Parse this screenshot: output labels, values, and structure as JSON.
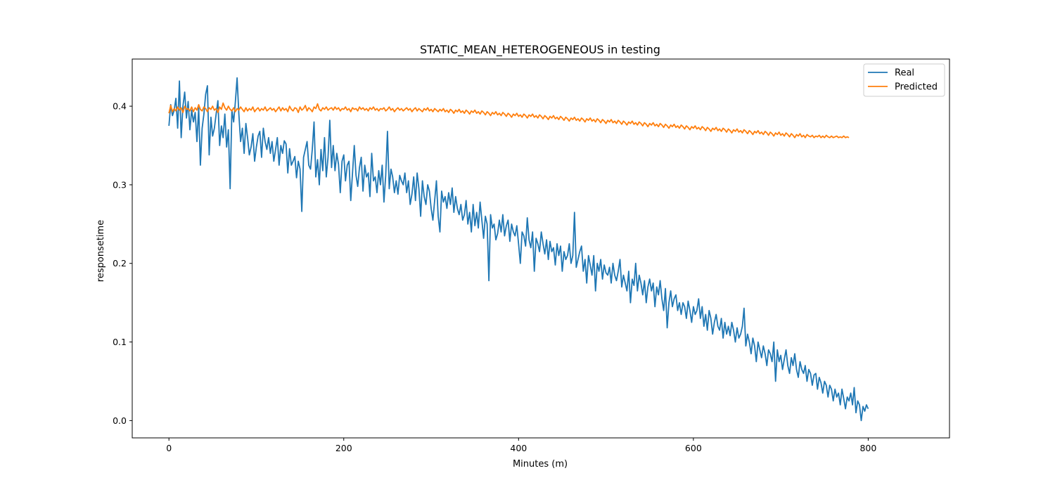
{
  "chart_data": {
    "type": "line",
    "title": "STATIC_MEAN_HETEROGENEOUS in testing",
    "xlabel": "Minutes (m)",
    "ylabel": "responsetime",
    "xlim": [
      -42,
      893
    ],
    "ylim": [
      -0.022,
      0.46
    ],
    "xticks": [
      0,
      200,
      400,
      600,
      800
    ],
    "yticks": [
      0.0,
      0.1,
      0.2,
      0.3,
      0.4
    ],
    "ytick_labels": [
      "0.0",
      "0.1",
      "0.2",
      "0.3",
      "0.4"
    ],
    "grid": false,
    "legend_position": "top-right",
    "series": [
      {
        "name": "Real",
        "color": "#1f77b4",
        "x_start": 0,
        "x_step": 2,
        "values": [
          0.375,
          0.402,
          0.388,
          0.395,
          0.41,
          0.372,
          0.432,
          0.36,
          0.4,
          0.418,
          0.385,
          0.406,
          0.37,
          0.395,
          0.38,
          0.392,
          0.355,
          0.398,
          0.325,
          0.372,
          0.39,
          0.415,
          0.426,
          0.338,
          0.386,
          0.362,
          0.372,
          0.39,
          0.407,
          0.35,
          0.375,
          0.36,
          0.39,
          0.348,
          0.37,
          0.295,
          0.395,
          0.38,
          0.405,
          0.436,
          0.39,
          0.355,
          0.372,
          0.34,
          0.378,
          0.36,
          0.338,
          0.348,
          0.365,
          0.33,
          0.348,
          0.362,
          0.368,
          0.335,
          0.372,
          0.355,
          0.345,
          0.36,
          0.34,
          0.355,
          0.33,
          0.345,
          0.36,
          0.325,
          0.35,
          0.34,
          0.356,
          0.352,
          0.315,
          0.346,
          0.325,
          0.33,
          0.336,
          0.309,
          0.33,
          0.32,
          0.266,
          0.335,
          0.345,
          0.355,
          0.325,
          0.32,
          0.345,
          0.38,
          0.31,
          0.332,
          0.3,
          0.345,
          0.318,
          0.36,
          0.31,
          0.335,
          0.382,
          0.322,
          0.35,
          0.318,
          0.34,
          0.326,
          0.29,
          0.33,
          0.338,
          0.305,
          0.325,
          0.33,
          0.28,
          0.315,
          0.35,
          0.312,
          0.298,
          0.322,
          0.335,
          0.292,
          0.325,
          0.31,
          0.315,
          0.285,
          0.34,
          0.305,
          0.31,
          0.29,
          0.318,
          0.3,
          0.325,
          0.278,
          0.312,
          0.368,
          0.295,
          0.32,
          0.31,
          0.29,
          0.305,
          0.288,
          0.312,
          0.305,
          0.3,
          0.315,
          0.29,
          0.305,
          0.275,
          0.288,
          0.31,
          0.28,
          0.315,
          0.295,
          0.26,
          0.305,
          0.285,
          0.275,
          0.3,
          0.292,
          0.27,
          0.255,
          0.28,
          0.305,
          0.26,
          0.24,
          0.292,
          0.278,
          0.285,
          0.27,
          0.29,
          0.275,
          0.296,
          0.265,
          0.285,
          0.27,
          0.262,
          0.275,
          0.255,
          0.262,
          0.28,
          0.25,
          0.265,
          0.24,
          0.275,
          0.248,
          0.265,
          0.245,
          0.278,
          0.255,
          0.232,
          0.26,
          0.25,
          0.178,
          0.262,
          0.245,
          0.25,
          0.23,
          0.238,
          0.255,
          0.24,
          0.262,
          0.235,
          0.248,
          0.255,
          0.228,
          0.25,
          0.24,
          0.235,
          0.248,
          0.225,
          0.2,
          0.24,
          0.235,
          0.222,
          0.258,
          0.23,
          0.22,
          0.24,
          0.19,
          0.232,
          0.225,
          0.215,
          0.24,
          0.225,
          0.212,
          0.23,
          0.205,
          0.228,
          0.215,
          0.22,
          0.198,
          0.225,
          0.21,
          0.222,
          0.19,
          0.215,
          0.205,
          0.21,
          0.225,
          0.2,
          0.21,
          0.265,
          0.195,
          0.205,
          0.215,
          0.222,
          0.19,
          0.205,
          0.175,
          0.21,
          0.198,
          0.185,
          0.21,
          0.165,
          0.2,
          0.19,
          0.205,
          0.18,
          0.198,
          0.188,
          0.185,
          0.195,
          0.175,
          0.2,
          0.185,
          0.178,
          0.19,
          0.205,
          0.17,
          0.185,
          0.175,
          0.165,
          0.19,
          0.15,
          0.18,
          0.172,
          0.2,
          0.165,
          0.185,
          0.175,
          0.16,
          0.178,
          0.15,
          0.17,
          0.18,
          0.165,
          0.175,
          0.145,
          0.17,
          0.16,
          0.178,
          0.155,
          0.14,
          0.168,
          0.118,
          0.15,
          0.165,
          0.145,
          0.155,
          0.16,
          0.14,
          0.15,
          0.135,
          0.15,
          0.145,
          0.13,
          0.152,
          0.14,
          0.125,
          0.145,
          0.135,
          0.14,
          0.155,
          0.13,
          0.145,
          0.12,
          0.135,
          0.115,
          0.14,
          0.13,
          0.11,
          0.125,
          0.135,
          0.12,
          0.115,
          0.13,
          0.105,
          0.125,
          0.11,
          0.12,
          0.108,
          0.125,
          0.115,
          0.1,
          0.118,
          0.105,
          0.11,
          0.12,
          0.143,
          0.095,
          0.11,
          0.1,
          0.085,
          0.105,
          0.095,
          0.075,
          0.1,
          0.09,
          0.08,
          0.095,
          0.085,
          0.07,
          0.09,
          0.085,
          0.075,
          0.1,
          0.05,
          0.09,
          0.075,
          0.083,
          0.065,
          0.078,
          0.09,
          0.07,
          0.06,
          0.08,
          0.07,
          0.085,
          0.065,
          0.055,
          0.075,
          0.065,
          0.06,
          0.07,
          0.05,
          0.065,
          0.06,
          0.045,
          0.058,
          0.06,
          0.04,
          0.055,
          0.048,
          0.035,
          0.05,
          0.045,
          0.03,
          0.045,
          0.04,
          0.025,
          0.04,
          0.03,
          0.035,
          0.02,
          0.04,
          0.028,
          0.015,
          0.03,
          0.025,
          0.035,
          0.02,
          0.042,
          0.01,
          0.025,
          0.02,
          0.0,
          0.018,
          0.012,
          0.02,
          0.015
        ]
      },
      {
        "name": "Predicted",
        "color": "#ff7f0e",
        "x_start": 0,
        "x_step": 2,
        "values": [
          0.391,
          0.401,
          0.393,
          0.397,
          0.394,
          0.399,
          0.395,
          0.398,
          0.392,
          0.4,
          0.396,
          0.397,
          0.394,
          0.399,
          0.393,
          0.398,
          0.395,
          0.402,
          0.396,
          0.394,
          0.399,
          0.397,
          0.393,
          0.398,
          0.396,
          0.4,
          0.395,
          0.397,
          0.392,
          0.399,
          0.396,
          0.404,
          0.398,
          0.395,
          0.4,
          0.396,
          0.394,
          0.398,
          0.393,
          0.397,
          0.395,
          0.399,
          0.396,
          0.393,
          0.398,
          0.394,
          0.397,
          0.395,
          0.399,
          0.393,
          0.396,
          0.398,
          0.394,
          0.397,
          0.395,
          0.399,
          0.394,
          0.396,
          0.398,
          0.395,
          0.397,
          0.393,
          0.396,
          0.399,
          0.394,
          0.398,
          0.395,
          0.397,
          0.393,
          0.4,
          0.396,
          0.394,
          0.398,
          0.397,
          0.392,
          0.399,
          0.395,
          0.397,
          0.401,
          0.394,
          0.398,
          0.396,
          0.393,
          0.399,
          0.397,
          0.403,
          0.396,
          0.394,
          0.398,
          0.396,
          0.399,
          0.395,
          0.397,
          0.398,
          0.395,
          0.399,
          0.396,
          0.398,
          0.394,
          0.397,
          0.396,
          0.399,
          0.395,
          0.397,
          0.393,
          0.398,
          0.396,
          0.397,
          0.394,
          0.399,
          0.396,
          0.398,
          0.395,
          0.397,
          0.394,
          0.398,
          0.396,
          0.399,
          0.395,
          0.397,
          0.394,
          0.397,
          0.396,
          0.398,
          0.394,
          0.396,
          0.399,
          0.395,
          0.397,
          0.393,
          0.396,
          0.398,
          0.395,
          0.397,
          0.394,
          0.396,
          0.398,
          0.395,
          0.397,
          0.393,
          0.396,
          0.398,
          0.394,
          0.397,
          0.395,
          0.393,
          0.397,
          0.395,
          0.398,
          0.394,
          0.396,
          0.393,
          0.397,
          0.395,
          0.393,
          0.396,
          0.394,
          0.397,
          0.393,
          0.395,
          0.392,
          0.396,
          0.394,
          0.391,
          0.395,
          0.393,
          0.396,
          0.392,
          0.394,
          0.391,
          0.395,
          0.393,
          0.39,
          0.394,
          0.392,
          0.395,
          0.391,
          0.393,
          0.39,
          0.394,
          0.392,
          0.389,
          0.393,
          0.391,
          0.388,
          0.392,
          0.39,
          0.393,
          0.389,
          0.391,
          0.388,
          0.392,
          0.39,
          0.387,
          0.391,
          0.389,
          0.386,
          0.39,
          0.388,
          0.391,
          0.387,
          0.389,
          0.386,
          0.39,
          0.388,
          0.385,
          0.389,
          0.387,
          0.39,
          0.386,
          0.388,
          0.385,
          0.389,
          0.387,
          0.384,
          0.388,
          0.386,
          0.383,
          0.387,
          0.385,
          0.388,
          0.384,
          0.386,
          0.383,
          0.387,
          0.385,
          0.382,
          0.386,
          0.384,
          0.381,
          0.385,
          0.383,
          0.386,
          0.382,
          0.384,
          0.381,
          0.385,
          0.383,
          0.38,
          0.384,
          0.382,
          0.385,
          0.381,
          0.383,
          0.38,
          0.384,
          0.382,
          0.379,
          0.383,
          0.381,
          0.378,
          0.382,
          0.38,
          0.383,
          0.379,
          0.381,
          0.378,
          0.382,
          0.38,
          0.377,
          0.381,
          0.379,
          0.376,
          0.38,
          0.378,
          0.381,
          0.377,
          0.379,
          0.376,
          0.38,
          0.378,
          0.375,
          0.379,
          0.377,
          0.374,
          0.378,
          0.376,
          0.379,
          0.375,
          0.377,
          0.374,
          0.378,
          0.376,
          0.373,
          0.377,
          0.375,
          0.372,
          0.376,
          0.374,
          0.377,
          0.373,
          0.375,
          0.372,
          0.376,
          0.374,
          0.371,
          0.375,
          0.373,
          0.37,
          0.374,
          0.372,
          0.375,
          0.371,
          0.373,
          0.37,
          0.374,
          0.372,
          0.369,
          0.373,
          0.371,
          0.368,
          0.372,
          0.37,
          0.373,
          0.369,
          0.371,
          0.368,
          0.372,
          0.37,
          0.367,
          0.371,
          0.369,
          0.366,
          0.37,
          0.368,
          0.371,
          0.367,
          0.369,
          0.366,
          0.37,
          0.368,
          0.365,
          0.369,
          0.367,
          0.364,
          0.368,
          0.366,
          0.369,
          0.365,
          0.367,
          0.364,
          0.368,
          0.366,
          0.363,
          0.367,
          0.365,
          0.362,
          0.366,
          0.364,
          0.367,
          0.363,
          0.365,
          0.362,
          0.366,
          0.364,
          0.361,
          0.365,
          0.363,
          0.36,
          0.364,
          0.362,
          0.365,
          0.361,
          0.363,
          0.36,
          0.364,
          0.362,
          0.361,
          0.363,
          0.36,
          0.362,
          0.361,
          0.363,
          0.36,
          0.362,
          0.36,
          0.363,
          0.361,
          0.36,
          0.362,
          0.36,
          0.361,
          0.362,
          0.36,
          0.361,
          0.36,
          0.362,
          0.36,
          0.361,
          0.36
        ]
      }
    ]
  }
}
